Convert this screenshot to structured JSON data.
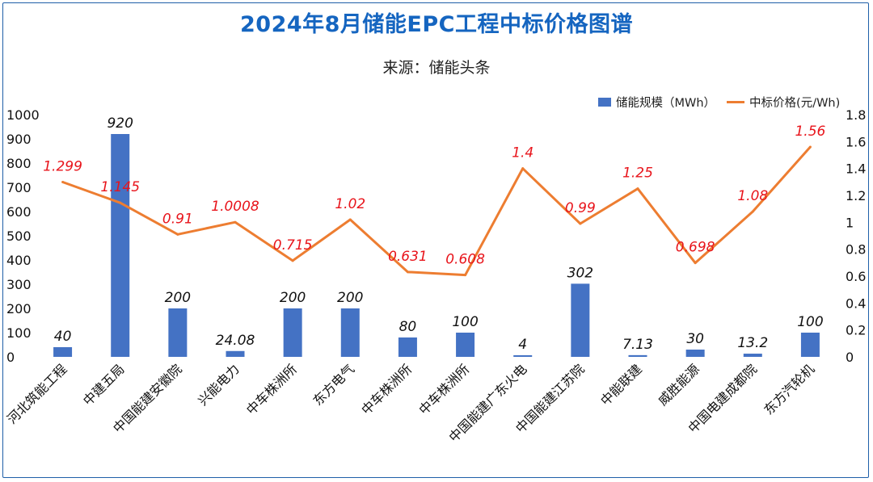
{
  "title": "2024年8月储能EPC工程中标价格图谱",
  "subtitle": "来源：储能头条",
  "colors": {
    "bar": "#4472c4",
    "line": "#ed7d31",
    "price_label": "#e8141b",
    "title": "#1565c0",
    "frame": "#1f5fa8"
  },
  "chart_data": {
    "type": "bar",
    "categories": [
      "河北筑能工程",
      "中建五局",
      "中国能建安徽院",
      "兴能电力",
      "中车株洲所",
      "东方电气",
      "中车株洲所",
      "中车株洲所",
      "中国能建广东火电",
      "中国能建江苏院",
      "中能联建",
      "威胜能源",
      "中国电建成都院",
      "东方汽轮机"
    ],
    "series": [
      {
        "name": "储能规模（MWh）",
        "type": "bar",
        "axis": "left",
        "values": [
          40,
          920,
          200,
          24.08,
          200,
          200,
          80,
          100,
          4,
          302,
          7.13,
          30,
          13.2,
          100
        ],
        "labels": [
          "40",
          "920",
          "200",
          "24.08",
          "200",
          "200",
          "80",
          "100",
          "4",
          "302",
          "7.13",
          "30",
          "13.2",
          "100"
        ]
      },
      {
        "name": "中标价格(元/Wh)",
        "type": "line",
        "axis": "right",
        "values": [
          1.299,
          1.145,
          0.91,
          1.0008,
          0.715,
          1.02,
          0.631,
          0.608,
          1.4,
          0.99,
          1.25,
          0.698,
          1.08,
          1.56
        ],
        "labels": [
          "1.299",
          "1.145",
          "0.91",
          "1.0008",
          "0.715",
          "1.02",
          "0.631",
          "0.608",
          "1.4",
          "0.99",
          "1.25",
          "0.698",
          "1.08",
          "1.56"
        ]
      }
    ],
    "y_left": {
      "min": 0,
      "max": 1000,
      "ticks": [
        "0",
        "100",
        "200",
        "300",
        "400",
        "500",
        "600",
        "700",
        "800",
        "900",
        "1000"
      ]
    },
    "y_right": {
      "min": 0,
      "max": 1.8,
      "ticks": [
        "0",
        "0.2",
        "0.4",
        "0.6",
        "0.8",
        "1",
        "1.2",
        "1.4",
        "1.6",
        "1.8"
      ]
    },
    "legend_position": "top-right",
    "grid": false
  }
}
